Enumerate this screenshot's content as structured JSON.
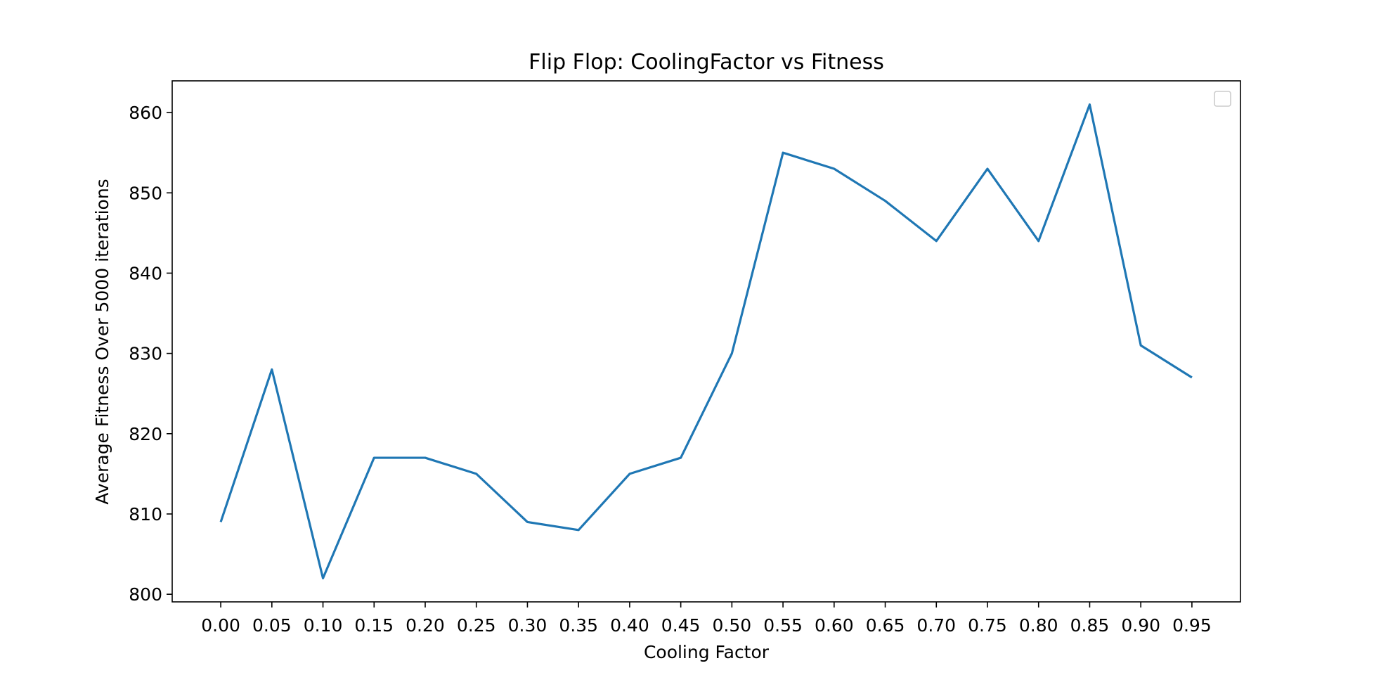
{
  "chart_data": {
    "type": "line",
    "title": "Flip Flop: CoolingFactor vs Fitness",
    "xlabel": "Cooling Factor",
    "ylabel": "Average Fitness Over 5000 iterations",
    "x": [
      0.0,
      0.05,
      0.1,
      0.15,
      0.2,
      0.25,
      0.3,
      0.35,
      0.4,
      0.45,
      0.5,
      0.55,
      0.6,
      0.65,
      0.7,
      0.75,
      0.8,
      0.85,
      0.9,
      0.95
    ],
    "xticks": [
      "0.00",
      "0.05",
      "0.10",
      "0.15",
      "0.20",
      "0.25",
      "0.30",
      "0.35",
      "0.40",
      "0.45",
      "0.50",
      "0.55",
      "0.60",
      "0.65",
      "0.70",
      "0.75",
      "0.80",
      "0.85",
      "0.90",
      "0.95"
    ],
    "series": [
      {
        "values": [
          809,
          828,
          802,
          817,
          817,
          815,
          809,
          808,
          815,
          817,
          830,
          855,
          853,
          849,
          844,
          853,
          844,
          861,
          831,
          827
        ],
        "color": "#1f77b4"
      }
    ],
    "xlim": [
      -0.0475,
      0.9975
    ],
    "ylim": [
      799.05,
      863.95
    ],
    "yticks": [
      "800",
      "810",
      "820",
      "830",
      "840",
      "850",
      "860"
    ],
    "grid": false,
    "legend": "top-right (empty)"
  }
}
